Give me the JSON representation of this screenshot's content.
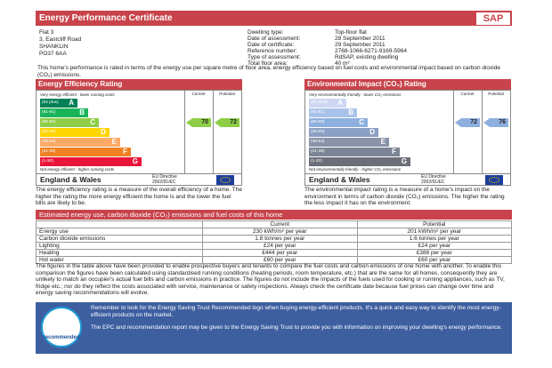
{
  "header": {
    "title": "Energy Performance Certificate",
    "logo": "SAP"
  },
  "address": [
    "Flat 3",
    "3, Eastcliff Road",
    "SHANKLIN",
    "PO37 6AA"
  ],
  "details": [
    [
      "Dwelling type:",
      "Top-floor flat"
    ],
    [
      "Date of assessment:",
      "28 September 2011"
    ],
    [
      "Date of certificate:",
      "29 September 2011"
    ],
    [
      "Reference number:",
      "2768-1066-6271-9169-5964"
    ],
    [
      "Type of assessment:",
      "RdSAP, existing dwelling"
    ],
    [
      "Total floor area:",
      "40 m²"
    ]
  ],
  "intro": "This home's performance is rated in terms of the energy use per square metre of floor area, energy efficiency based on fuel costs and environmental impact based on carbon dioxide (CO₂) emissions.",
  "ratings": [
    {
      "title": "Energy Efficiency Rating",
      "current_label": "Current",
      "potential_label": "Potential",
      "top_note": "Very energy efficient - lower running costs",
      "bottom_note": "Not energy efficient - higher running costs",
      "bands": [
        {
          "range": "(92 plus)",
          "letter": "A",
          "color": "#008054"
        },
        {
          "range": "(81-91)",
          "letter": "B",
          "color": "#19b459"
        },
        {
          "range": "(69-80)",
          "letter": "C",
          "color": "#8dce46"
        },
        {
          "range": "(55-68)",
          "letter": "D",
          "color": "#ffd500"
        },
        {
          "range": "(39-54)",
          "letter": "E",
          "color": "#fcaa65"
        },
        {
          "range": "(21-38)",
          "letter": "F",
          "color": "#ef8023"
        },
        {
          "range": "(1-20)",
          "letter": "G",
          "color": "#e9153b"
        }
      ],
      "current": 70,
      "potential": 72,
      "region": "England & Wales",
      "directive": [
        "EU Directive",
        "2002/91/EC"
      ],
      "description": "The energy efficiency rating is a measure of the overall efficiency of a home. The higher the rating the more energy efficient the home is and the lower the fuel bills are likely to be."
    },
    {
      "title": "Environmental Impact (CO₂) Rating",
      "current_label": "Current",
      "potential_label": "Potential",
      "top_note": "Very environmentally friendly - lower CO₂ emissions",
      "bottom_note": "Not environmentally friendly - higher CO₂ emissions",
      "bands": [
        {
          "range": "(92 plus)",
          "letter": "A",
          "color": "#cdd6f2"
        },
        {
          "range": "(81-91)",
          "letter": "B",
          "color": "#a9c2ea"
        },
        {
          "range": "(69-80)",
          "letter": "C",
          "color": "#8eb0de"
        },
        {
          "range": "(55-68)",
          "letter": "D",
          "color": "#8a9fc2"
        },
        {
          "range": "(39-54)",
          "letter": "E",
          "color": "#8993a8"
        },
        {
          "range": "(21-38)",
          "letter": "F",
          "color": "#7c8595"
        },
        {
          "range": "(1-20)",
          "letter": "G",
          "color": "#6a6f78"
        }
      ],
      "current": 72,
      "potential": 76,
      "region": "England & Wales",
      "directive": [
        "EU Directive",
        "2002/91/EC"
      ],
      "description": "The environmental impact rating is a measure of a home's impact on the environment in terms of carbon dioxide (CO₂) emissions. The higher the rating the less impact it has on the environment."
    }
  ],
  "table": {
    "title": "Estimated energy use, carbon dioxide (CO₂) emissions and fuel costs of this home",
    "columns": [
      "Current",
      "Potential"
    ],
    "rows": [
      [
        "Energy use",
        "230 kWh/m² per year",
        "201 kWh/m² per year"
      ],
      [
        "Carbon dioxide emissions",
        "1.8 tonnes per year",
        "1.6 tonnes per year"
      ],
      [
        "Lighting",
        "£24 per year",
        "£24 per year"
      ],
      [
        "Heating",
        "£444 per year",
        "£388 per year"
      ],
      [
        "Hot water",
        "£60 per year",
        "£60 per year"
      ]
    ]
  },
  "notes": "The figures in the table above have been provided to enable prospective buyers and tenants to compare the fuel costs and carbon emissions of one home with another. To enable this comparison the figures have been calculated using standardised running conditions (heating periods, room temperature, etc.) that are the same for all homes, consequently they are unlikely to match an occupier's actual fuel bills and carbon emissions in practice. The figures do not include the impacts of the fuels used for cooking or running appliances, such as TV, fridge etc.; nor do they reflect the costs associated with service, maintenance or safety inspections. Always check the certificate date because fuel prices can change over time and energy saving recommendations will evolve.",
  "footer": {
    "badge": "recommended",
    "lines": [
      "Remember to look for the Energy Saving Trust Recommended logo when buying energy-efficient products. It's a quick and easy way to identify the most energy-efficient products on the market.",
      "The EPC and recommendation report may be given to the Energy Saving Trust to provide you with information on improving your dwelling's energy performance."
    ]
  }
}
